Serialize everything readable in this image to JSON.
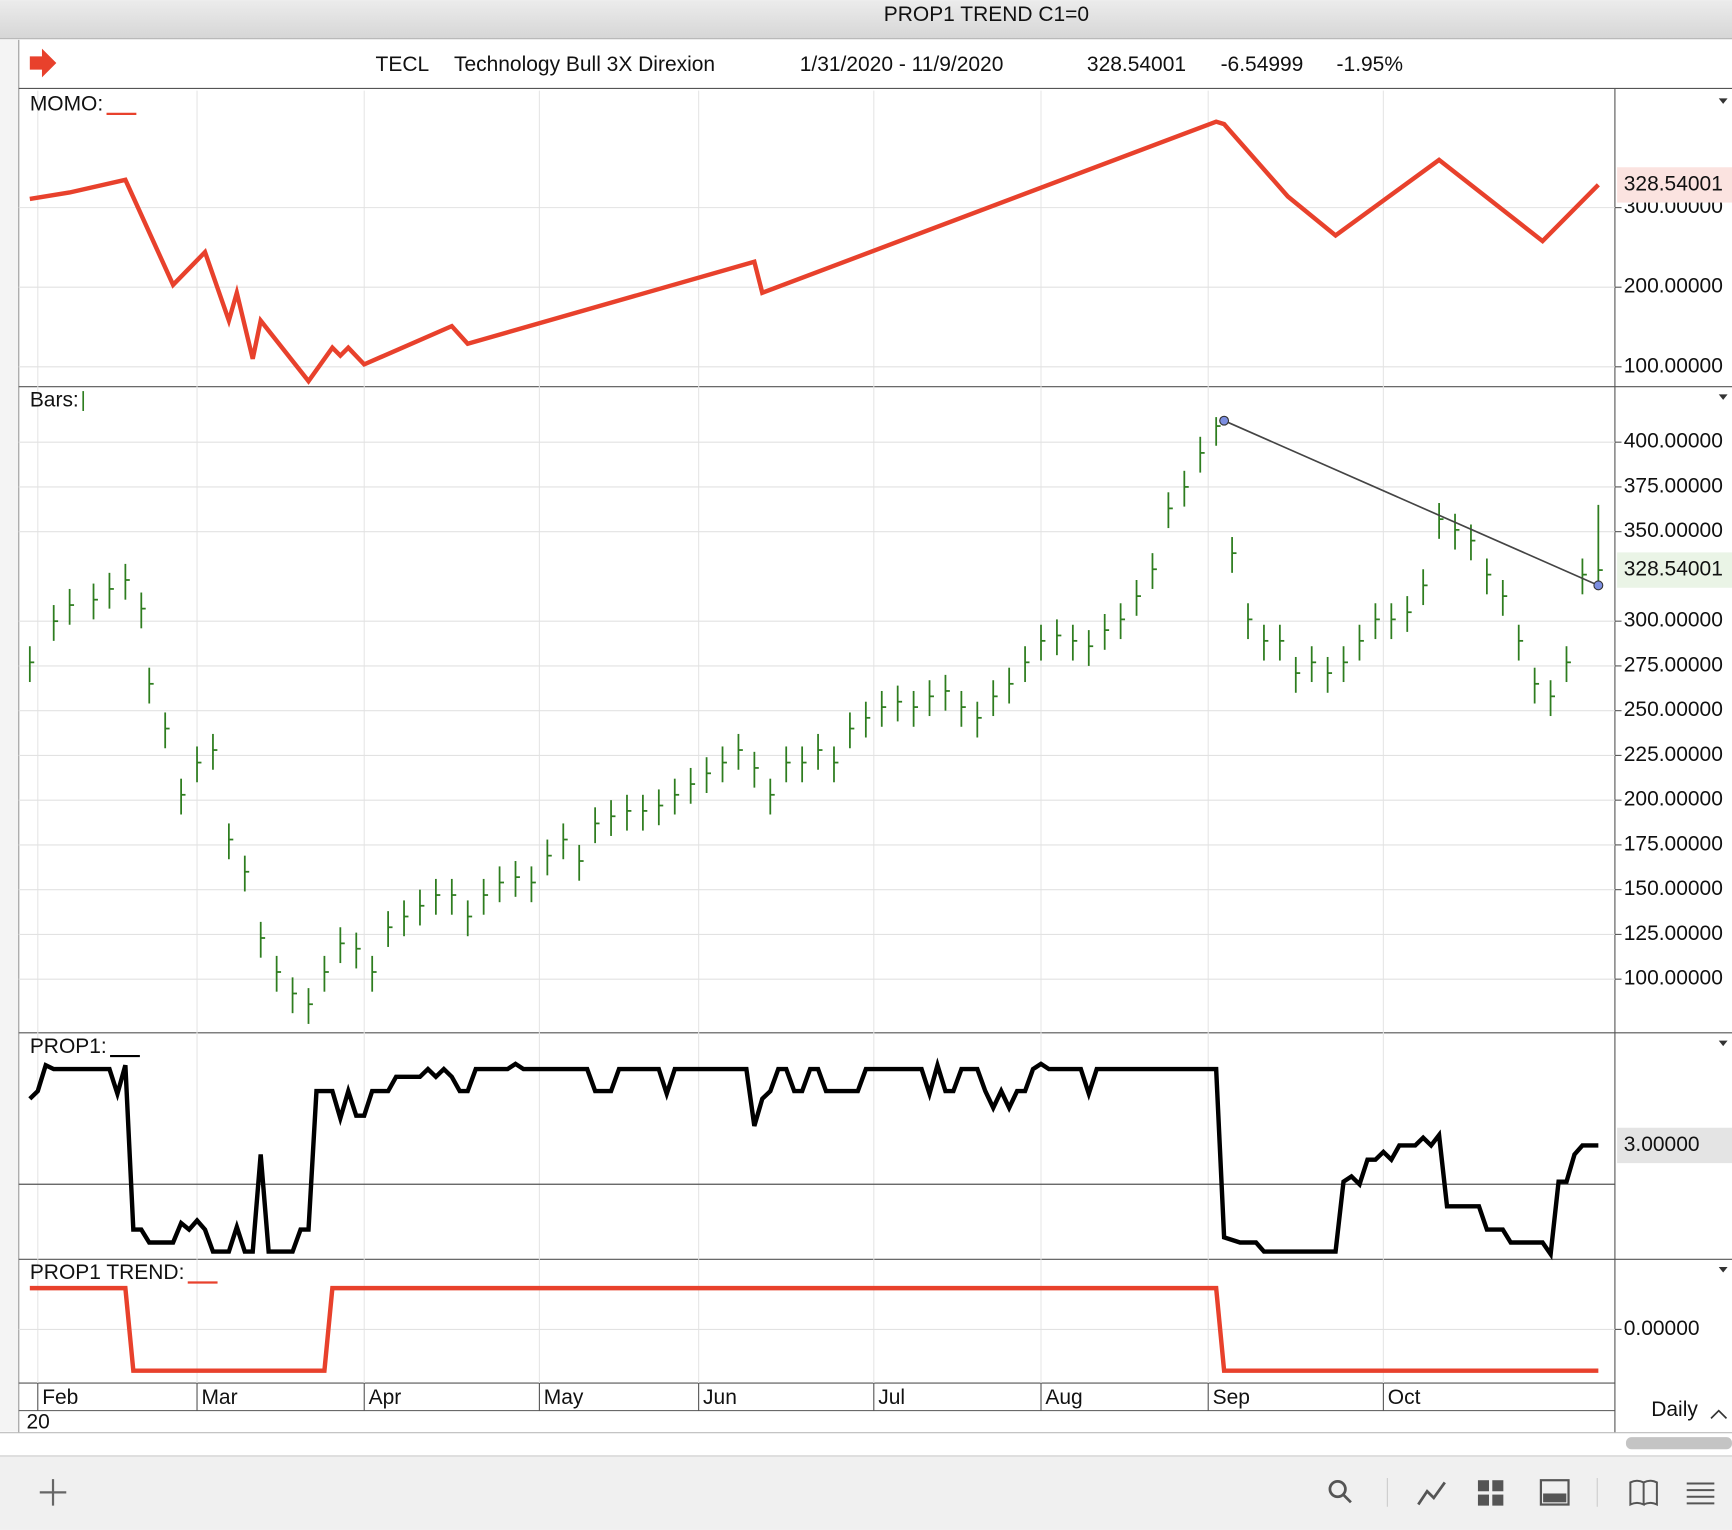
{
  "header": {
    "window_title": "PROP1 TREND C1=0",
    "symbol": "TECL",
    "name": "Technology Bull 3X Direxion",
    "date_range": "1/31/2020 - 11/9/2020",
    "last": "328.54001",
    "change": "-6.54999",
    "change_pct": "-1.95%"
  },
  "x_axis": {
    "xlim": [
      0,
      197
    ],
    "xticks": [
      {
        "value": 1,
        "label": "Feb"
      },
      {
        "value": 21,
        "label": "Mar"
      },
      {
        "value": 42,
        "label": "Apr"
      },
      {
        "value": 64,
        "label": "May"
      },
      {
        "value": 84,
        "label": "Jun"
      },
      {
        "value": 106,
        "label": "Jul"
      },
      {
        "value": 127,
        "label": "Aug"
      },
      {
        "value": 148,
        "label": "Sep"
      },
      {
        "value": 170,
        "label": "Oct"
      }
    ],
    "year_label": "20",
    "period": "Daily"
  },
  "chart_data": [
    {
      "type": "line",
      "title": "MOMO:",
      "color": "#e8412c",
      "x": [
        0,
        5,
        12,
        18,
        22,
        25,
        26,
        28,
        29,
        35,
        38,
        39,
        40,
        42,
        53,
        55,
        91,
        92,
        149,
        150,
        158,
        164,
        177,
        190,
        197
      ],
      "values": [
        311,
        319,
        335,
        203,
        244,
        158,
        193,
        110,
        158,
        82,
        124,
        114,
        124,
        103,
        151,
        129,
        232,
        193,
        408,
        405,
        314,
        265,
        360,
        258,
        328.54001
      ],
      "ylim": [
        75,
        447
      ],
      "yticks": [
        {
          "value": 100,
          "label": "100.00000"
        },
        {
          "value": 200,
          "label": "200.00000"
        },
        {
          "value": 300,
          "label": "300.00000"
        }
      ],
      "last_value": 328.54001
    },
    {
      "type": "ohlc",
      "title": "Bars:",
      "color": "#2e7d1f",
      "x": [
        0,
        3,
        5,
        8,
        10,
        12,
        14,
        15,
        17,
        19,
        21,
        23,
        25,
        27,
        29,
        31,
        33,
        35,
        37,
        39,
        41,
        43,
        45,
        47,
        49,
        51,
        53,
        55,
        57,
        59,
        61,
        63,
        65,
        67,
        69,
        71,
        73,
        75,
        77,
        79,
        81,
        83,
        85,
        87,
        89,
        91,
        93,
        95,
        97,
        99,
        101,
        103,
        105,
        107,
        109,
        111,
        113,
        115,
        117,
        119,
        121,
        123,
        125,
        127,
        129,
        131,
        133,
        135,
        137,
        139,
        141,
        143,
        145,
        147,
        149,
        151,
        153,
        155,
        157,
        159,
        161,
        163,
        165,
        167,
        169,
        171,
        173,
        175,
        177,
        179,
        181,
        183,
        185,
        187,
        189,
        191,
        193,
        195,
        197
      ],
      "high": [
        286,
        309,
        318,
        321,
        327,
        332,
        316,
        274,
        249,
        212,
        230,
        237,
        187,
        169,
        132,
        113,
        101,
        95,
        113,
        129,
        126,
        113,
        138,
        144,
        150,
        156,
        156,
        144,
        156,
        163,
        166,
        163,
        178,
        187,
        175,
        196,
        200,
        203,
        203,
        206,
        212,
        218,
        224,
        230,
        237,
        227,
        212,
        230,
        230,
        237,
        230,
        249,
        255,
        261,
        264,
        261,
        267,
        270,
        261,
        255,
        267,
        274,
        286,
        298,
        301,
        298,
        295,
        304,
        310,
        323,
        338,
        372,
        384,
        403,
        414,
        347,
        310,
        298,
        298,
        280,
        286,
        280,
        286,
        298,
        310,
        310,
        314,
        329,
        366,
        360,
        354,
        335,
        323,
        298,
        274,
        267,
        286,
        335,
        365
      ],
      "low": [
        266,
        289,
        298,
        301,
        307,
        312,
        296,
        254,
        229,
        192,
        210,
        217,
        167,
        149,
        112,
        93,
        81,
        75,
        93,
        109,
        106,
        93,
        118,
        124,
        130,
        136,
        136,
        124,
        136,
        143,
        146,
        143,
        158,
        167,
        155,
        176,
        180,
        183,
        183,
        186,
        192,
        198,
        204,
        210,
        217,
        207,
        192,
        210,
        210,
        217,
        210,
        229,
        235,
        241,
        244,
        241,
        247,
        250,
        241,
        235,
        247,
        254,
        266,
        278,
        281,
        278,
        275,
        284,
        290,
        303,
        318,
        352,
        364,
        383,
        398,
        327,
        290,
        278,
        278,
        260,
        266,
        260,
        266,
        278,
        290,
        290,
        294,
        309,
        346,
        340,
        334,
        315,
        303,
        278,
        254,
        247,
        266,
        315,
        318
      ],
      "close": [
        277,
        300,
        309,
        312,
        318,
        323,
        307,
        265,
        240,
        203,
        221,
        228,
        178,
        160,
        123,
        104,
        92,
        86,
        104,
        120,
        117,
        104,
        129,
        135,
        141,
        147,
        147,
        135,
        147,
        154,
        157,
        154,
        169,
        178,
        166,
        187,
        191,
        194,
        194,
        197,
        203,
        209,
        215,
        221,
        228,
        218,
        203,
        221,
        221,
        228,
        221,
        240,
        246,
        252,
        255,
        252,
        258,
        261,
        252,
        246,
        258,
        265,
        277,
        289,
        292,
        289,
        286,
        295,
        301,
        314,
        329,
        363,
        375,
        394,
        409,
        338,
        301,
        289,
        289,
        271,
        277,
        271,
        277,
        289,
        301,
        301,
        305,
        320,
        357,
        351,
        345,
        326,
        314,
        289,
        265,
        258,
        277,
        326,
        328.54001
      ],
      "ylim": [
        70,
        431
      ],
      "yticks": [
        {
          "value": 100,
          "label": "100.00000"
        },
        {
          "value": 125,
          "label": "125.00000"
        },
        {
          "value": 150,
          "label": "150.00000"
        },
        {
          "value": 175,
          "label": "175.00000"
        },
        {
          "value": 200,
          "label": "200.00000"
        },
        {
          "value": 225,
          "label": "225.00000"
        },
        {
          "value": 250,
          "label": "250.00000"
        },
        {
          "value": 275,
          "label": "275.00000"
        },
        {
          "value": 300,
          "label": "300.00000"
        },
        {
          "value": 350,
          "label": "350.00000"
        },
        {
          "value": 375,
          "label": "375.00000"
        },
        {
          "value": 400,
          "label": "400.00000"
        }
      ],
      "trendline": {
        "x": [
          150,
          197
        ],
        "values": [
          412,
          320
        ]
      },
      "last_value": 328.54001
    },
    {
      "type": "line",
      "title": "PROP1:",
      "color": "#000000",
      "x": [
        0,
        1,
        2,
        3,
        10,
        11,
        12,
        13,
        14,
        15,
        18,
        19,
        20,
        21,
        22,
        23,
        25,
        26,
        27,
        28,
        29,
        30,
        33,
        34,
        35,
        36,
        38,
        39,
        40,
        41,
        42,
        43,
        45,
        46,
        49,
        50,
        51,
        52,
        53,
        54,
        55,
        56,
        60,
        61,
        62,
        70,
        71,
        73,
        74,
        79,
        80,
        81,
        90,
        91,
        92,
        93,
        94,
        95,
        96,
        97,
        98,
        99,
        100,
        104,
        105,
        112,
        113,
        114,
        115,
        116,
        117,
        119,
        120,
        121,
        122,
        123,
        124,
        125,
        126,
        127,
        128,
        132,
        133,
        134,
        149,
        150,
        152,
        154,
        155,
        164,
        165,
        166,
        167,
        168,
        169,
        170,
        171,
        172,
        174,
        175,
        176,
        177,
        178,
        182,
        183,
        185,
        186,
        190,
        191,
        192,
        193,
        194,
        195,
        197
      ],
      "values": [
        6.6,
        7.2,
        9.2,
        8.9,
        8.9,
        7.0,
        9.2,
        -3.5,
        -3.5,
        -4.5,
        -4.5,
        -3.0,
        -3.5,
        -2.8,
        -3.5,
        -5.2,
        -5.2,
        -3.3,
        -5.2,
        -5.2,
        2.3,
        -5.2,
        -5.2,
        -3.5,
        -3.5,
        7.2,
        7.2,
        5.1,
        7.2,
        5.3,
        5.3,
        7.2,
        7.2,
        8.3,
        8.3,
        8.9,
        8.3,
        8.9,
        8.3,
        7.2,
        7.2,
        8.9,
        8.9,
        9.3,
        8.9,
        8.9,
        7.2,
        7.2,
        8.9,
        8.9,
        7.0,
        8.9,
        8.9,
        4.5,
        6.6,
        7.2,
        8.9,
        8.9,
        7.2,
        7.2,
        8.9,
        8.9,
        7.2,
        7.2,
        8.9,
        8.9,
        7.0,
        9.2,
        7.2,
        7.2,
        8.9,
        8.9,
        7.2,
        5.9,
        7.2,
        5.9,
        7.2,
        7.2,
        8.9,
        9.3,
        8.9,
        8.9,
        7.0,
        8.9,
        8.9,
        -4.1,
        -4.5,
        -4.5,
        -5.2,
        -5.2,
        0.2,
        0.6,
        0.0,
        1.9,
        1.9,
        2.5,
        1.9,
        3.0,
        3.0,
        3.6,
        3.0,
        3.8,
        -1.7,
        -1.7,
        -3.5,
        -3.5,
        -4.5,
        -4.5,
        -5.4,
        0.2,
        0.2,
        2.3,
        3.0,
        3.0
      ],
      "ylim": [
        -5.8,
        11.7
      ],
      "hline": 0,
      "last_value": {
        "value": 3,
        "label": "3.00000"
      }
    },
    {
      "type": "line",
      "title": "PROP1 TREND:",
      "color": "#e8412c",
      "x": [
        0,
        12,
        13,
        37,
        38,
        149,
        150,
        197
      ],
      "values": [
        1,
        1,
        -1,
        -1,
        1,
        1,
        -1,
        -1
      ],
      "ylim": [
        -1.3,
        1.7
      ],
      "yticks": [
        {
          "value": 0,
          "label": "0.00000"
        }
      ]
    }
  ]
}
